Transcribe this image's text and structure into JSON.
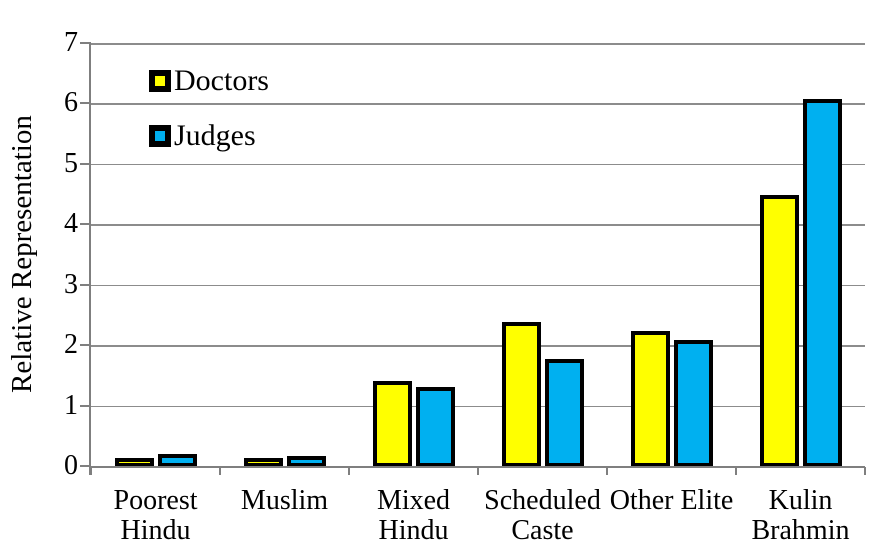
{
  "chart_data": {
    "type": "bar",
    "title": "",
    "ylabel": "Relative Representation",
    "xlabel": "",
    "ylim": [
      0,
      7
    ],
    "yticks": [
      0,
      1,
      2,
      3,
      4,
      5,
      6,
      7
    ],
    "grid": true,
    "legend_position": "top-left-inside",
    "categories": [
      "Poorest Hindu",
      "Muslim",
      "Mixed Hindu",
      "Scheduled Caste",
      "Other Elite",
      "Kulin Brahmin"
    ],
    "category_label_lines": [
      [
        "Poorest",
        "Hindu"
      ],
      [
        "Muslim"
      ],
      [
        "Mixed",
        "Hindu"
      ],
      [
        "Scheduled",
        "Caste"
      ],
      [
        "Other Elite"
      ],
      [
        "Kulin",
        "Brahmin"
      ]
    ],
    "series": [
      {
        "name": "Doctors",
        "color": "#FFFF00",
        "values": [
          0.1,
          0.13,
          1.4,
          2.38,
          2.23,
          4.48
        ]
      },
      {
        "name": "Judges",
        "color": "#00B0F0",
        "values": [
          0.2,
          0.16,
          1.3,
          1.77,
          2.08,
          6.08
        ]
      }
    ],
    "colors": {
      "bar_border": "#000000",
      "axis": "#7f7f7f",
      "gridline": "#8c8c8c",
      "text": "#000000",
      "background": "#ffffff"
    }
  }
}
